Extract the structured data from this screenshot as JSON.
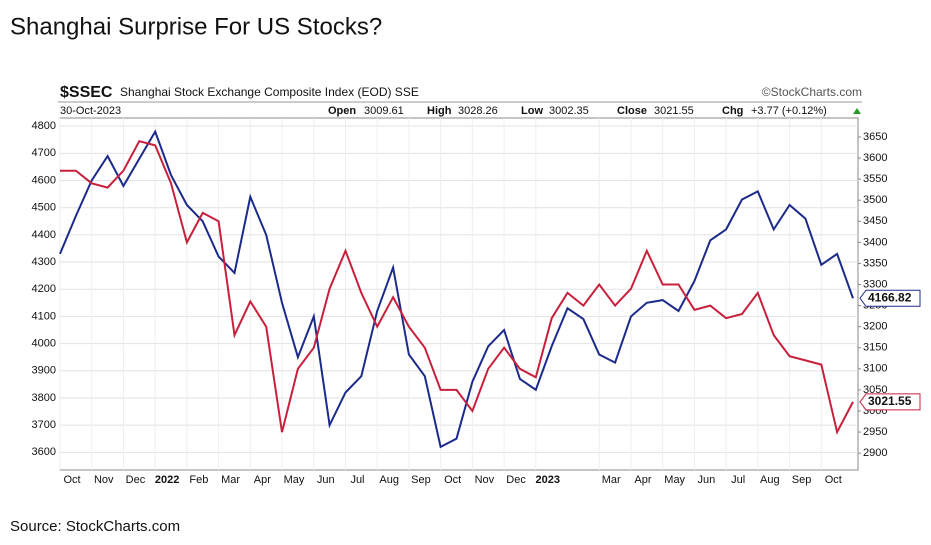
{
  "title": "Shanghai Surprise For US Stocks?",
  "source": "Source: StockCharts.com",
  "chart_data": {
    "type": "line",
    "symbol": "$SSEC",
    "subtitle": "Shanghai Stock Exchange Composite Index (EOD) SSE",
    "credit": "©StockCharts.com",
    "date": "30-Oct-2023",
    "quote": {
      "open_label": "Open",
      "open": "3009.61",
      "high_label": "High",
      "high": "3028.26",
      "low_label": "Low",
      "low": "3002.35",
      "close_label": "Close",
      "close": "3021.55",
      "chg_label": "Chg",
      "chg": "+3.77 (+0.12%)"
    },
    "categories": [
      "Oct",
      null,
      "Nov",
      null,
      "Dec",
      null,
      "2022",
      null,
      "Feb",
      null,
      "Mar",
      null,
      "Apr",
      null,
      "May",
      null,
      "Jun",
      null,
      "Jul",
      null,
      "Aug",
      null,
      "Sep",
      null,
      "Oct",
      null,
      "Nov",
      null,
      "Dec",
      null,
      "2023",
      null,
      null,
      null,
      "Mar",
      null,
      "Apr",
      null,
      "May",
      null,
      "Jun",
      null,
      "Jul",
      null,
      "Aug",
      null,
      "Sep",
      null,
      "Oct",
      null,
      null
    ],
    "series": [
      {
        "color": "#1c2a8a",
        "values": [
          4330,
          4470,
          4600,
          4690,
          4580,
          4680,
          4780,
          4620,
          4510,
          4450,
          4320,
          4260,
          4540,
          4400,
          4150,
          3950,
          4100,
          3700,
          3820,
          3880,
          4120,
          4280,
          3960,
          3880,
          3620,
          3650,
          3860,
          3990,
          4050,
          3870,
          3830,
          3990,
          4130,
          4090,
          3960,
          3930,
          4100,
          4150,
          4160,
          4120,
          4230,
          4380,
          4420,
          4530,
          4560,
          4420,
          4510,
          4460,
          4290,
          4330,
          4166.82
        ]
      },
      {
        "color": "#c8203c",
        "axis": "y2",
        "values": [
          3570,
          3570,
          3540,
          3530,
          3570,
          3640,
          3630,
          3540,
          3400,
          3470,
          3450,
          3180,
          3260,
          3200,
          2950,
          3100,
          3150,
          3290,
          3380,
          3280,
          3200,
          3270,
          3200,
          3150,
          3050,
          3050,
          3000,
          3100,
          3150,
          3100,
          3080,
          3220,
          3280,
          3250,
          3300,
          3250,
          3290,
          3380,
          3300,
          3300,
          3240,
          3250,
          3220,
          3230,
          3280,
          3180,
          3130,
          3120,
          3110,
          2950,
          3021.55
        ]
      }
    ],
    "ylim": [
      3535,
      4830
    ],
    "yticks": [
      3600,
      3700,
      3800,
      3900,
      4000,
      4100,
      4200,
      4300,
      4400,
      4500,
      4600,
      4700,
      4800
    ],
    "y2lim": [
      2860,
      3695
    ],
    "y2ticks": [
      2900,
      2950,
      3000,
      3050,
      3100,
      3150,
      3200,
      3250,
      3300,
      3350,
      3400,
      3450,
      3500,
      3550,
      3600,
      3650
    ],
    "grid": true
  }
}
